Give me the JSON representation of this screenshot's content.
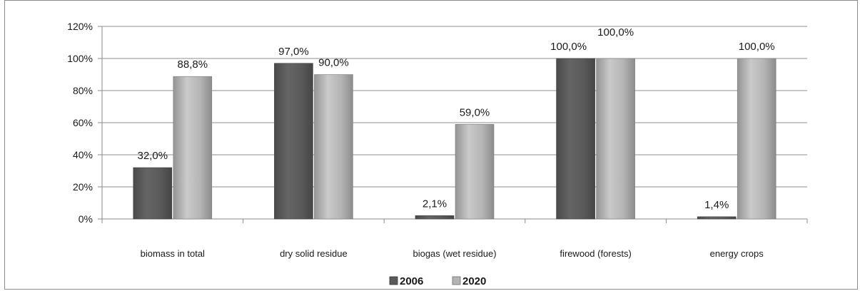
{
  "chart_data": {
    "type": "bar",
    "categories": [
      "biomass in total",
      "dry solid residue",
      "biogas (wet residue)",
      "firewood (forests)",
      "energy crops"
    ],
    "series": [
      {
        "name": "2006",
        "values": [
          32.0,
          97.0,
          2.1,
          100.0,
          1.4
        ],
        "labels": [
          "32,0%",
          "97,0%",
          "2,1%",
          "100,0%",
          "1,4%"
        ],
        "color": "#5a5a5a"
      },
      {
        "name": "2020",
        "values": [
          88.8,
          90.0,
          59.0,
          100.0,
          100.0
        ],
        "labels": [
          "88,8%",
          "90,0%",
          "59,0%",
          "100,0%",
          "100,0%"
        ],
        "color": "#b4b4b4"
      }
    ],
    "y_ticks": [
      "0%",
      "20%",
      "40%",
      "60%",
      "80%",
      "100%",
      "120%"
    ],
    "ylim": [
      0,
      120
    ],
    "grid": true,
    "legend_position": "bottom"
  }
}
